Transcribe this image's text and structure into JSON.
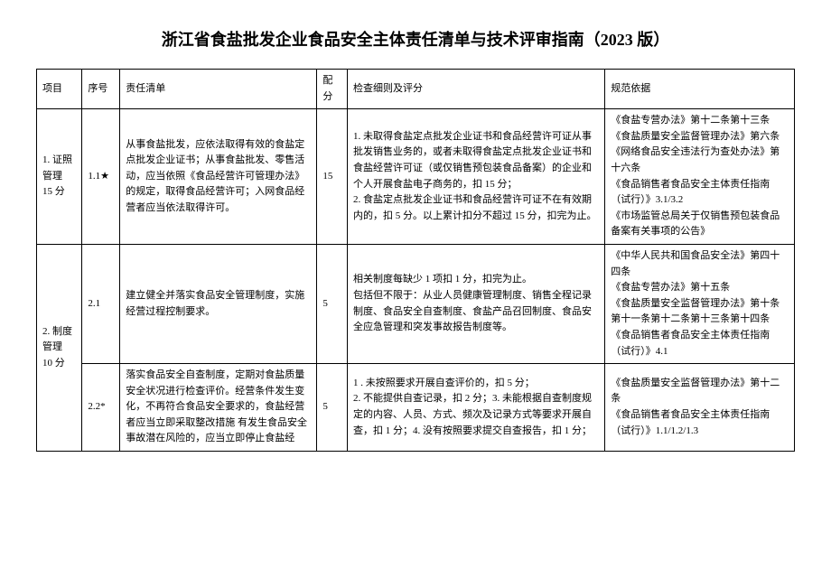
{
  "title": "浙江省食盐批发企业食品安全主体责任清单与技术评审指南（2023 版）",
  "headers": {
    "project": "项目",
    "num": "序号",
    "duty": "责任清单",
    "score": "配分",
    "detail": "检查细则及评分",
    "basis": "规范依据"
  },
  "section1": {
    "project": "1. 证照管理\n15 分",
    "row1": {
      "num": "1.1★",
      "duty": "从事食盐批发，应依法取得有效的食盐定点批发企业证书；从事食盐批发、零售活动，应当依照《食品经营许可管理办法》的规定，取得食品经营许可；入网食品经营者应当依法取得许可。",
      "score": "15",
      "detail": "1. 未取得食盐定点批发企业证书和食品经营许可证从事批发销售业务的，或者未取得食盐定点批发企业证书和食盐经营许可证（或仅销售预包装食品备案）的企业和个人开展食盐电子商务的，扣 15 分；\n2. 食盐定点批发企业证书和食品经营许可证不在有效期内的，扣 5 分。以上累计扣分不超过 15 分，扣完为止。",
      "basis": "《食盐专营办法》第十二条第十三条\n《食盐质量安全监督管理办法》第六条\n《网络食品安全违法行为查处办法》第十六条\n《食品销售者食品安全主体责任指南（试行）》3.1/3.2\n《市场监管总局关于仅销售预包装食品备案有关事项的公告》"
    }
  },
  "section2": {
    "project": "2. 制度管理\n10 分",
    "row1": {
      "num": "2.1",
      "duty": "建立健全并落实食品安全管理制度，实施经营过程控制要求。",
      "score": "5",
      "detail": "相关制度每缺少 1 项扣 1 分，扣完为止。\n包括但不限于：从业人员健康管理制度、销售全程记录制度、食品安全自查制度、食盐产品召回制度、食品安全应急管理和突发事故报告制度等。",
      "basis": "《中华人民共和国食品安全法》第四十四条\n《食盐专营办法》第十五条\n《食盐质量安全监督管理办法》第十条第十一条第十二条第十三条第十四条\n《食品销售者食品安全主体责任指南（试行）》4.1"
    },
    "row2": {
      "num": "2.2*",
      "duty": "落实食品安全自查制度，定期对食盐质量安全状况进行检查评价。经营条件发生变化，不再符合食品安全要求的，食盐经营者应当立即采取整改措施 有发生食品安全事故潜在风险的，应当立即停止食盐经",
      "score": "5",
      "detail": "1       . 未按照要求开展自查评价的，扣 5 分；\n2. 不能提供自查记录，扣 2 分；3. 未能根据自查制度规定的内容、人员、方式、频次及记录方式等要求开展自查，扣 1 分；4. 没有按照要求提交自查报告，扣 1 分；",
      "basis": "《食盐质量安全监督管理办法》第十二条\n《食品销售者食品安全主体责任指南（试行）》1.1/1.2/1.3"
    }
  }
}
